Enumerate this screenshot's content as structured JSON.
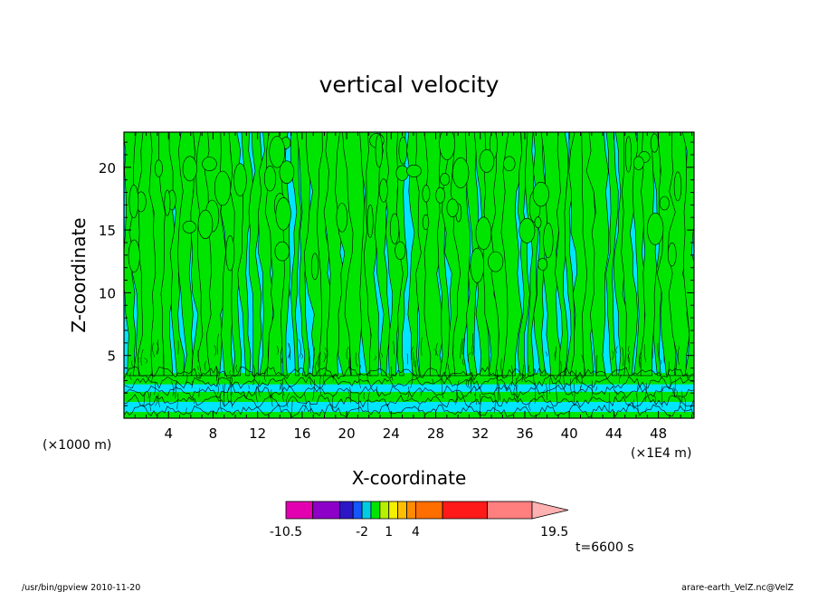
{
  "chart_data": {
    "type": "heatmap",
    "title": "vertical velocity",
    "xlabel": "X-coordinate",
    "ylabel": "Z-coordinate",
    "x_axis": {
      "unit_left": "(×1000 m)",
      "unit_right": "(×1E4 m)",
      "range": [
        0,
        51.2
      ],
      "ticks": [
        4,
        8,
        12,
        16,
        20,
        24,
        28,
        32,
        36,
        40,
        44,
        48
      ],
      "tick_labels": [
        "4",
        "8",
        "12",
        "16",
        "20",
        "24",
        "28",
        "32",
        "36",
        "40",
        "44",
        "48"
      ]
    },
    "y_axis": {
      "range": [
        0,
        22.8
      ],
      "ticks": [
        5,
        10,
        15,
        20
      ],
      "tick_labels": [
        "5",
        "10",
        "15",
        "20"
      ]
    },
    "field_colors": {
      "negative": "#00e5ff",
      "positive": "#00e500",
      "contour": "#000000"
    },
    "colorbar": {
      "min": -10.5,
      "max": 19.5,
      "boundaries": [
        -10.5,
        -7.5,
        -4.5,
        -3,
        -2,
        -1,
        0,
        1,
        2,
        3,
        4,
        7,
        12,
        17,
        19.5
      ],
      "colors": [
        "#e300b0",
        "#8c00c8",
        "#2b17c6",
        "#1457ff",
        "#00cde2",
        "#00e500",
        "#b6f000",
        "#f4f000",
        "#ffbf00",
        "#ff8c00",
        "#ff6e00",
        "#ff1a1a",
        "#ff7f7f",
        "#ffb0b0"
      ],
      "labels": [
        {
          "text": "-10.5",
          "value": -10.5
        },
        {
          "text": "-2",
          "value": -2
        },
        {
          "text": "1",
          "value": 1
        },
        {
          "text": "4",
          "value": 4
        },
        {
          "text": "19.5",
          "value": 19.5
        }
      ]
    },
    "time_label": "t=6600 s",
    "footer_left": "/usr/bin/gpview   2010-11-20",
    "footer_right": "arare-earth_VelZ.nc@VelZ"
  }
}
